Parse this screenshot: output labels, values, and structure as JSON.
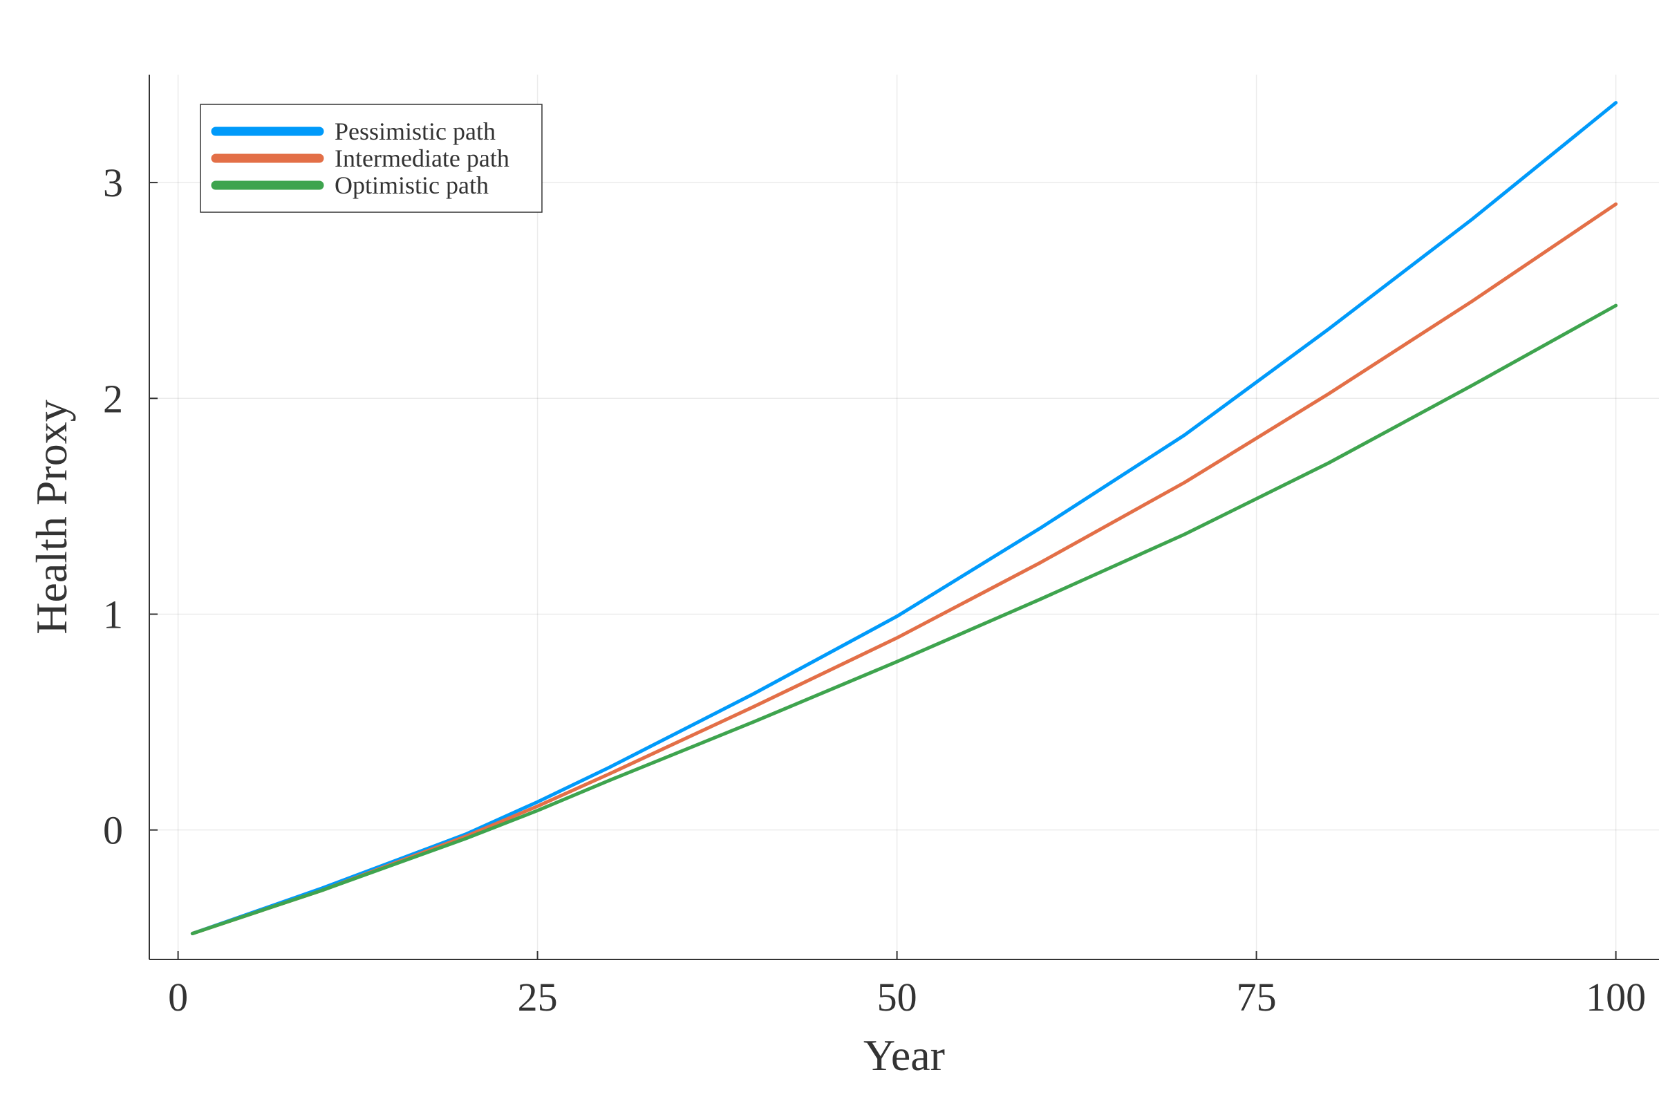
{
  "chart_data": {
    "type": "line",
    "title": "",
    "xlabel": "Year",
    "ylabel": "Health Proxy",
    "xlim": [
      -2,
      103
    ],
    "ylim": [
      -0.6,
      3.5
    ],
    "xticks": [
      0,
      25,
      50,
      75,
      100
    ],
    "yticks": [
      0,
      1,
      2,
      3
    ],
    "grid": true,
    "legend_position": "top-left",
    "series": [
      {
        "name": "Pessimistic path",
        "color": "#009AFA",
        "x": [
          1,
          10,
          20,
          25,
          30,
          40,
          50,
          60,
          70,
          80,
          90,
          100
        ],
        "y": [
          -0.48,
          -0.27,
          -0.02,
          0.13,
          0.29,
          0.63,
          0.99,
          1.4,
          1.83,
          2.32,
          2.83,
          3.37
        ]
      },
      {
        "name": "Intermediate path",
        "color": "#E36F47",
        "x": [
          1,
          10,
          20,
          25,
          30,
          40,
          50,
          60,
          70,
          80,
          90,
          100
        ],
        "y": [
          -0.48,
          -0.28,
          -0.03,
          0.11,
          0.26,
          0.57,
          0.89,
          1.24,
          1.61,
          2.02,
          2.45,
          2.9
        ]
      },
      {
        "name": "Optimistic path",
        "color": "#3EA44E",
        "x": [
          1,
          10,
          20,
          25,
          30,
          40,
          50,
          60,
          70,
          80,
          90,
          100
        ],
        "y": [
          -0.48,
          -0.28,
          -0.04,
          0.09,
          0.23,
          0.5,
          0.78,
          1.07,
          1.37,
          1.7,
          2.06,
          2.43
        ]
      }
    ]
  }
}
